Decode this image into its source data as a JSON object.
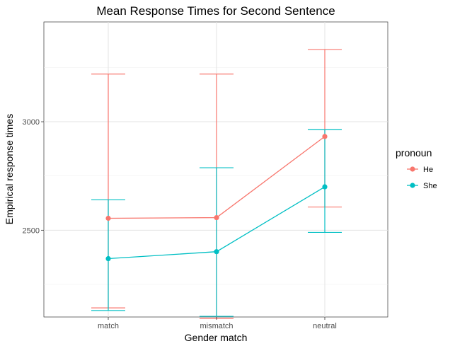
{
  "chart_data": {
    "type": "line",
    "title": "Mean Response Times for Second Sentence",
    "xlabel": "Gender match",
    "ylabel": "Empirical response times",
    "categories": [
      "match",
      "mismatch",
      "neutral"
    ],
    "ylim": [
      2100,
      3460
    ],
    "yticks": [
      2500,
      3000
    ],
    "grid": true,
    "legend": {
      "title": "pronoun",
      "position": "right"
    },
    "series": [
      {
        "name": "He",
        "color": "#F8766D",
        "values": [
          2555,
          2558,
          2932
        ],
        "lower": [
          2142,
          2093,
          2607
        ],
        "upper": [
          3220,
          3220,
          3333
        ]
      },
      {
        "name": "She",
        "color": "#00BFC4",
        "values": [
          2369,
          2401,
          2700
        ],
        "lower": [
          2130,
          2103,
          2490
        ],
        "upper": [
          2640,
          2788,
          2963
        ]
      }
    ]
  }
}
